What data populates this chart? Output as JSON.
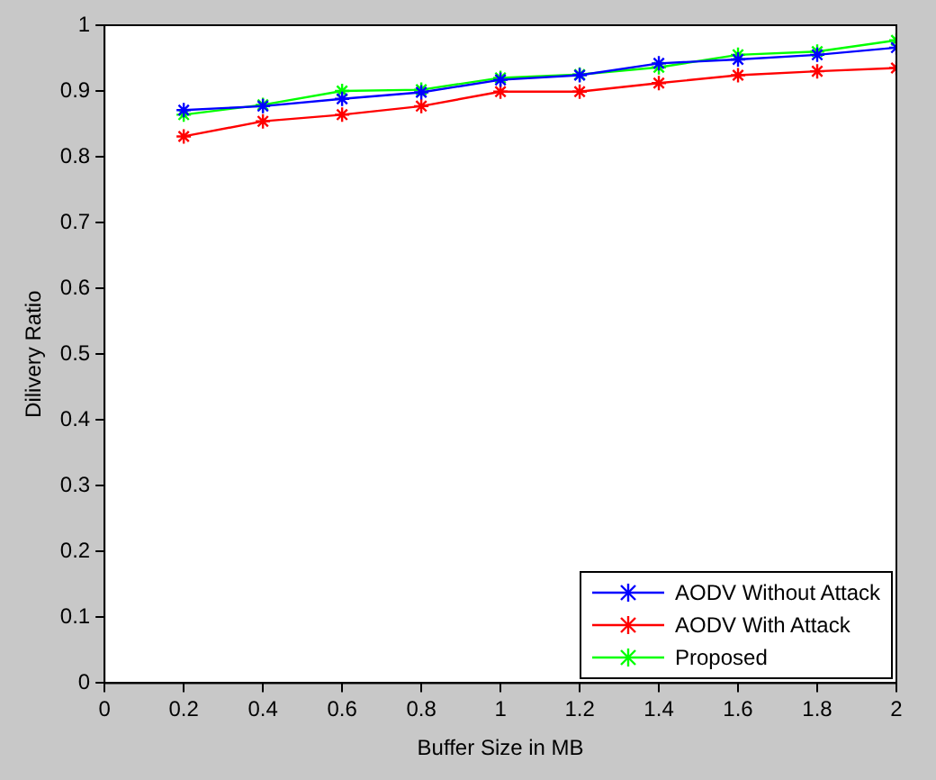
{
  "chart_data": {
    "type": "line",
    "xlabel": "Buffer Size in MB",
    "ylabel": "Dilivery Ratio",
    "x": [
      0.2,
      0.4,
      0.6,
      0.8,
      1.0,
      1.2,
      1.4,
      1.6,
      1.8,
      2.0
    ],
    "series": [
      {
        "name": "AODV Without Attack",
        "color": "#0000ff",
        "values": [
          0.871,
          0.877,
          0.888,
          0.898,
          0.917,
          0.924,
          0.942,
          0.948,
          0.955,
          0.966
        ]
      },
      {
        "name": "AODV With Attack",
        "color": "#ff0000",
        "values": [
          0.831,
          0.854,
          0.864,
          0.877,
          0.899,
          0.899,
          0.912,
          0.924,
          0.93,
          0.935
        ]
      },
      {
        "name": "Proposed",
        "color": "#00ff00",
        "values": [
          0.864,
          0.879,
          0.9,
          0.902,
          0.92,
          0.925,
          0.936,
          0.955,
          0.96,
          0.977
        ]
      }
    ],
    "xlim": [
      0,
      2
    ],
    "xticks": [
      0,
      0.2,
      0.4,
      0.6,
      0.8,
      1,
      1.2,
      1.4,
      1.6,
      1.8,
      2
    ],
    "ylim": [
      0,
      1
    ],
    "yticks": [
      0,
      0.1,
      0.2,
      0.3,
      0.4,
      0.5,
      0.6,
      0.7,
      0.8,
      0.9,
      1
    ],
    "grid": false,
    "legend": "bottom right",
    "marker": "cross",
    "line_style": "solid"
  }
}
